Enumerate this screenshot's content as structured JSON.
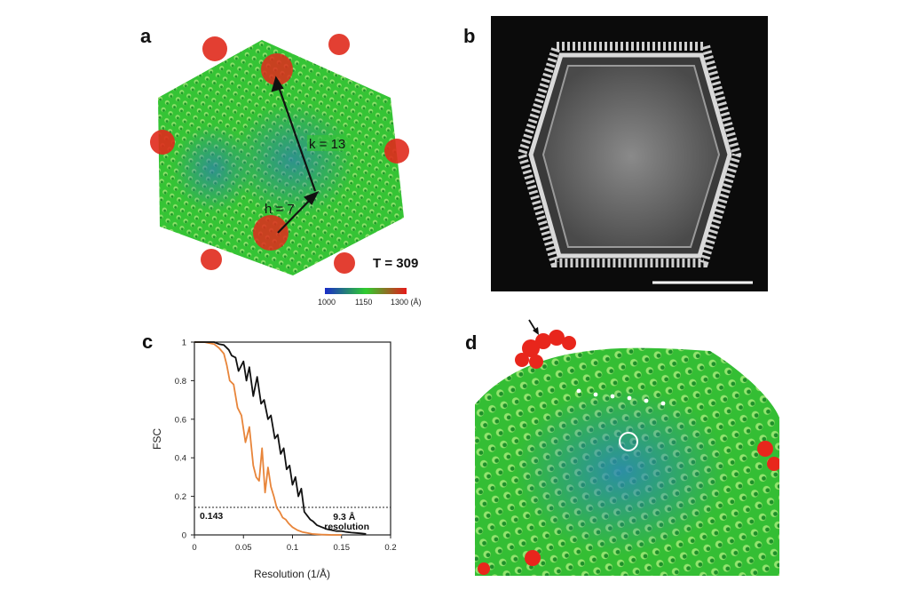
{
  "panels": {
    "a": {
      "label": "a",
      "arrow_k_label": "k = 13",
      "arrow_h_label": "h = 7",
      "t_number": "T = 309",
      "colorbar": {
        "ticks": [
          "1000",
          "1150",
          "1300 (Å)"
        ],
        "colors": [
          "#1a2cc8",
          "#2ecc2e",
          "#e61a1a"
        ]
      },
      "colors": {
        "capsid_green": "#35c435",
        "vertex_red": "#e02a1c",
        "face_blue": "#2b7fb0"
      }
    },
    "b": {
      "label": "b",
      "colors": {
        "background": "#0b0b0b",
        "shell": "#d9d9d9",
        "interior": "#6b6b6b",
        "scalebar": "#ffffff"
      }
    },
    "c": {
      "label": "c"
    },
    "d": {
      "label": "d",
      "colors": {
        "capsid_green": "#3fcf3f",
        "vertex_red": "#e8261c",
        "face_blue": "#2a86b8"
      }
    }
  },
  "chart_data": {
    "type": "line",
    "title": "",
    "xlabel": "Resolution (1/Å)",
    "ylabel": "FSC",
    "xlim": [
      0,
      0.2
    ],
    "ylim": [
      0,
      1
    ],
    "x_ticks": [
      "0",
      "0.05",
      "0.1",
      "0.15",
      "0.2"
    ],
    "y_ticks": [
      "0",
      "0.2",
      "0.4",
      "0.6",
      "0.8",
      "1"
    ],
    "threshold": {
      "value": 0.143,
      "label": "0.143",
      "style": "dotted"
    },
    "annotation": {
      "line1": "9.3 Å",
      "line2": "resolution",
      "x": 0.107
    },
    "series": [
      {
        "name": "black",
        "color": "#111111",
        "x": [
          0,
          0.01,
          0.02,
          0.025,
          0.03,
          0.035,
          0.038,
          0.042,
          0.045,
          0.05,
          0.053,
          0.056,
          0.06,
          0.064,
          0.068,
          0.071,
          0.075,
          0.078,
          0.082,
          0.085,
          0.088,
          0.091,
          0.094,
          0.097,
          0.1,
          0.103,
          0.106,
          0.109,
          0.112,
          0.115,
          0.118,
          0.121,
          0.125,
          0.13,
          0.135,
          0.14,
          0.145,
          0.15,
          0.155,
          0.16,
          0.165,
          0.17,
          0.175
        ],
        "values": [
          1,
          1,
          1,
          0.99,
          0.985,
          0.96,
          0.93,
          0.92,
          0.85,
          0.9,
          0.8,
          0.87,
          0.72,
          0.82,
          0.68,
          0.7,
          0.6,
          0.62,
          0.5,
          0.52,
          0.42,
          0.45,
          0.34,
          0.36,
          0.26,
          0.3,
          0.2,
          0.24,
          0.12,
          0.1,
          0.08,
          0.07,
          0.05,
          0.04,
          0.03,
          0.025,
          0.02,
          0.02,
          0.015,
          0.012,
          0.01,
          0.008,
          0.005
        ]
      },
      {
        "name": "orange",
        "color": "#e8853a",
        "x": [
          0,
          0.01,
          0.02,
          0.025,
          0.03,
          0.033,
          0.036,
          0.04,
          0.044,
          0.048,
          0.052,
          0.056,
          0.06,
          0.063,
          0.066,
          0.069,
          0.072,
          0.075,
          0.078,
          0.081,
          0.084,
          0.087,
          0.09,
          0.093,
          0.096,
          0.1,
          0.105,
          0.11,
          0.115,
          0.12,
          0.125,
          0.13,
          0.135,
          0.14,
          0.15
        ],
        "values": [
          1,
          1,
          0.99,
          0.97,
          0.94,
          0.88,
          0.8,
          0.78,
          0.66,
          0.62,
          0.48,
          0.56,
          0.36,
          0.3,
          0.28,
          0.45,
          0.22,
          0.35,
          0.25,
          0.2,
          0.14,
          0.12,
          0.09,
          0.08,
          0.06,
          0.04,
          0.025,
          0.015,
          0.01,
          0.005,
          0.003,
          0.002,
          0.001,
          0,
          0
        ]
      }
    ]
  }
}
